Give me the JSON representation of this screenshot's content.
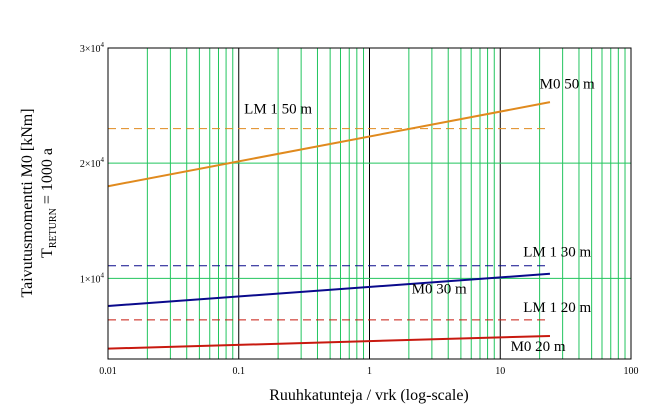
{
  "chart_data": {
    "type": "line",
    "xscale": "log",
    "xlim": [
      0.01,
      100
    ],
    "ylim": [
      3000,
      30000
    ],
    "xlabel": "Ruuhkatunteja / vrk (log-scale)",
    "ylabel_line1": "Taivutusmomentti M0 [kNm]",
    "ylabel_line2_main": "T",
    "ylabel_line2_sub": "RETURN",
    "ylabel_line2_rest": " = 1000 a",
    "x_ticks": [
      {
        "value": 0.01,
        "label": "0.01"
      },
      {
        "value": 0.1,
        "label": "0.1"
      },
      {
        "value": 1,
        "label": "1"
      },
      {
        "value": 10,
        "label": "10"
      },
      {
        "value": 100,
        "label": "100"
      }
    ],
    "y_ticks": [
      {
        "value": 10000,
        "mant": "1",
        "exp": "4"
      },
      {
        "value": 20000,
        "mant": "2",
        "exp": "4"
      },
      {
        "value": 30000,
        "mant": "3",
        "exp": "4"
      }
    ],
    "colors": {
      "grid_minor": "#22c55e",
      "grid_major": "#000000",
      "frame": "#000000",
      "orange": "#e08a1e",
      "blue": "#0a0a8c",
      "red": "#c8190f"
    },
    "series": [
      {
        "label": "M0 50 m",
        "color": "#e08a1e",
        "style": "solid",
        "x": [
          0.01,
          24
        ],
        "y": [
          18000,
          25300
        ]
      },
      {
        "label": "LM 1 50 m",
        "color": "#e08a1e",
        "style": "dashed",
        "x": [
          0.01,
          24
        ],
        "y": [
          23000,
          23000
        ]
      },
      {
        "label": "LM 1 30 m",
        "color": "#0a0a8c",
        "style": "dashed",
        "x": [
          0.01,
          24
        ],
        "y": [
          11100,
          11100
        ]
      },
      {
        "label": "M0 30 m",
        "color": "#0a0a8c",
        "style": "solid",
        "x": [
          0.01,
          24
        ],
        "y": [
          7600,
          10400
        ]
      },
      {
        "label": "LM 1 20 m",
        "color": "#c8190f",
        "style": "dashed",
        "x": [
          0.01,
          24
        ],
        "y": [
          6400,
          6400
        ]
      },
      {
        "label": "M0 20 m",
        "color": "#c8190f",
        "style": "solid",
        "x": [
          0.01,
          24
        ],
        "y": [
          3900,
          5000
        ]
      }
    ],
    "annotations": [
      {
        "text": "M0 50 m",
        "x": 20,
        "y": 26500
      },
      {
        "text": "LM 1 50 m",
        "x": 0.11,
        "y": 24300
      },
      {
        "text": "LM 1 30 m",
        "x": 15,
        "y": 11900
      },
      {
        "text": "M0 30 m",
        "x": 2.1,
        "y": 8700
      },
      {
        "text": "LM 1 20 m",
        "x": 15,
        "y": 7100
      },
      {
        "text": "M0 20 m",
        "x": 12,
        "y": 3700
      }
    ]
  }
}
